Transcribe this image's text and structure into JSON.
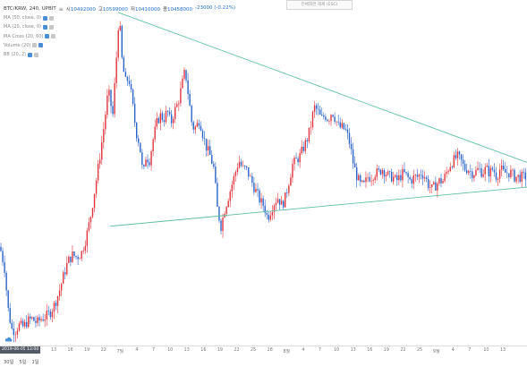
{
  "header": {
    "symbol": "BTC/KRW, 240, UPBIT",
    "ohlc": [
      {
        "k": "시",
        "v": "10492000"
      },
      {
        "k": "고",
        "v": "10599000"
      },
      {
        "k": "저",
        "v": "10410000"
      },
      {
        "k": "종",
        "v": "10458000"
      }
    ],
    "change": "-23000 (-0.22%)"
  },
  "indicators": [
    {
      "label": "MA (50, close, 0)",
      "style": "blue"
    },
    {
      "label": "MA (20, close, 0)",
      "style": "blue"
    },
    {
      "label": "MA Cross (20, 60)",
      "style": "blue"
    },
    {
      "label": "Volume (20)",
      "style": "grey"
    },
    {
      "label": "BB (20, 2)",
      "style": "blue"
    }
  ],
  "top_right_box": "전체화면 해제 (ESC)",
  "time_axis": {
    "cursor_date": "2019-06-05",
    "cursor_time": "13:00",
    "ticks": [
      "13",
      "16",
      "19",
      "22",
      "7월",
      "4",
      "7",
      "10",
      "13",
      "16",
      "19",
      "22",
      "25",
      "28",
      "8월",
      "4",
      "7",
      "10",
      "13",
      "16",
      "19",
      "22",
      "25",
      "9월",
      "4",
      "7",
      "10",
      "13"
    ]
  },
  "bottom_bar": [
    "30일",
    "5일",
    "1일"
  ],
  "colors": {
    "up": "#e0343e",
    "down": "#2a63c8",
    "trendline": "#5fbf9f",
    "value_text": "#1f6fd0"
  },
  "chart_data": {
    "type": "candlestick",
    "title": "BTC/KRW, 240, UPBIT",
    "x_ticks": [
      "13",
      "16",
      "19",
      "22",
      "7월",
      "4",
      "7",
      "10",
      "13",
      "16",
      "19",
      "22",
      "25",
      "28",
      "8월",
      "4",
      "7",
      "10",
      "13",
      "16",
      "19",
      "22",
      "25",
      "9월",
      "4",
      "7",
      "10",
      "13"
    ],
    "y_range_price": [
      7400000,
      15800000
    ],
    "close_path": [
      [
        0,
        9800000
      ],
      [
        5,
        9300000
      ],
      [
        9,
        8300000
      ],
      [
        13,
        7800000
      ],
      [
        17,
        7750000
      ],
      [
        21,
        7900000
      ],
      [
        26,
        7850000
      ],
      [
        31,
        8000000
      ],
      [
        36,
        8050000
      ],
      [
        41,
        7950000
      ],
      [
        46,
        8050000
      ],
      [
        51,
        8100000
      ],
      [
        56,
        8200000
      ],
      [
        61,
        8400000
      ],
      [
        66,
        8700000
      ],
      [
        71,
        9100000
      ],
      [
        76,
        9450000
      ],
      [
        81,
        9600000
      ],
      [
        86,
        9550000
      ],
      [
        91,
        9650000
      ],
      [
        96,
        10000000
      ],
      [
        101,
        10500000
      ],
      [
        106,
        11200000
      ],
      [
        111,
        11900000
      ],
      [
        116,
        12700000
      ],
      [
        121,
        13600000
      ],
      [
        126,
        13000000
      ],
      [
        131,
        14700000
      ],
      [
        133,
        15500000
      ],
      [
        136,
        14400000
      ],
      [
        140,
        13800000
      ],
      [
        144,
        13900000
      ],
      [
        148,
        13300000
      ],
      [
        152,
        12600000
      ],
      [
        156,
        12300000
      ],
      [
        160,
        11500000
      ],
      [
        163,
        12000000
      ],
      [
        167,
        11900000
      ],
      [
        171,
        12400000
      ],
      [
        175,
        12800000
      ],
      [
        179,
        13000000
      ],
      [
        183,
        12900000
      ],
      [
        187,
        13100000
      ],
      [
        191,
        12800000
      ],
      [
        195,
        13100000
      ],
      [
        199,
        13300000
      ],
      [
        203,
        13700000
      ],
      [
        207,
        14100000
      ],
      [
        211,
        13400000
      ],
      [
        215,
        12700000
      ],
      [
        219,
        12700000
      ],
      [
        223,
        12900000
      ],
      [
        227,
        12500000
      ],
      [
        231,
        12200000
      ],
      [
        235,
        12000000
      ],
      [
        239,
        11700000
      ],
      [
        243,
        10700000
      ],
      [
        247,
        10300000
      ],
      [
        251,
        10700000
      ],
      [
        255,
        11000000
      ],
      [
        259,
        11300000
      ],
      [
        263,
        11600000
      ],
      [
        267,
        11900000
      ],
      [
        271,
        11700000
      ],
      [
        275,
        11700000
      ],
      [
        279,
        11500000
      ],
      [
        283,
        11300000
      ],
      [
        287,
        11100000
      ],
      [
        291,
        10900000
      ],
      [
        295,
        10800000
      ],
      [
        299,
        10500000
      ],
      [
        303,
        10700000
      ],
      [
        307,
        10900000
      ],
      [
        311,
        11000000
      ],
      [
        315,
        10800000
      ],
      [
        319,
        11000000
      ],
      [
        323,
        11400000
      ],
      [
        327,
        11800000
      ],
      [
        331,
        11900000
      ],
      [
        335,
        12000000
      ],
      [
        339,
        12200000
      ],
      [
        343,
        12400000
      ],
      [
        347,
        12700000
      ],
      [
        351,
        13200000
      ],
      [
        355,
        13100000
      ],
      [
        359,
        12900000
      ],
      [
        363,
        13000000
      ],
      [
        367,
        12900000
      ],
      [
        371,
        13100000
      ],
      [
        375,
        12900000
      ],
      [
        379,
        12700000
      ],
      [
        383,
        12700000
      ],
      [
        387,
        12600000
      ],
      [
        391,
        12300000
      ],
      [
        395,
        11800000
      ],
      [
        399,
        11500000
      ],
      [
        403,
        11300000
      ],
      [
        407,
        11300000
      ],
      [
        411,
        11500000
      ],
      [
        415,
        11500000
      ],
      [
        419,
        11600000
      ],
      [
        423,
        11600000
      ],
      [
        427,
        11700000
      ],
      [
        431,
        11600000
      ],
      [
        435,
        11500000
      ],
      [
        439,
        11500000
      ],
      [
        443,
        11400000
      ],
      [
        447,
        11500000
      ],
      [
        451,
        11600000
      ],
      [
        455,
        11500000
      ],
      [
        459,
        11400000
      ],
      [
        463,
        11500000
      ],
      [
        467,
        11500000
      ],
      [
        471,
        11600000
      ],
      [
        475,
        11500000
      ],
      [
        479,
        11300000
      ],
      [
        483,
        11200000
      ],
      [
        487,
        11300000
      ],
      [
        491,
        11400000
      ],
      [
        495,
        11400000
      ],
      [
        499,
        11600000
      ],
      [
        503,
        11800000
      ],
      [
        507,
        11900000
      ],
      [
        511,
        12000000
      ],
      [
        515,
        11900000
      ],
      [
        519,
        11700000
      ],
      [
        523,
        11700000
      ],
      [
        527,
        11600000
      ],
      [
        531,
        11600000
      ],
      [
        535,
        11700000
      ],
      [
        539,
        11600000
      ],
      [
        543,
        11700000
      ],
      [
        547,
        11600000
      ],
      [
        551,
        11700000
      ],
      [
        555,
        11500000
      ],
      [
        559,
        11700000
      ],
      [
        563,
        11600000
      ],
      [
        567,
        11600000
      ],
      [
        571,
        11600000
      ],
      [
        575,
        11500000
      ],
      [
        579,
        11500000
      ],
      [
        583,
        11500000
      ],
      [
        588,
        11500000
      ]
    ],
    "trendlines": [
      {
        "name": "resistance",
        "from": [
          132,
          15500000
        ],
        "to": [
          589,
          11850000
        ]
      },
      {
        "name": "support",
        "from": [
          123,
          10300000
        ],
        "to": [
          589,
          11250000
        ]
      }
    ]
  }
}
